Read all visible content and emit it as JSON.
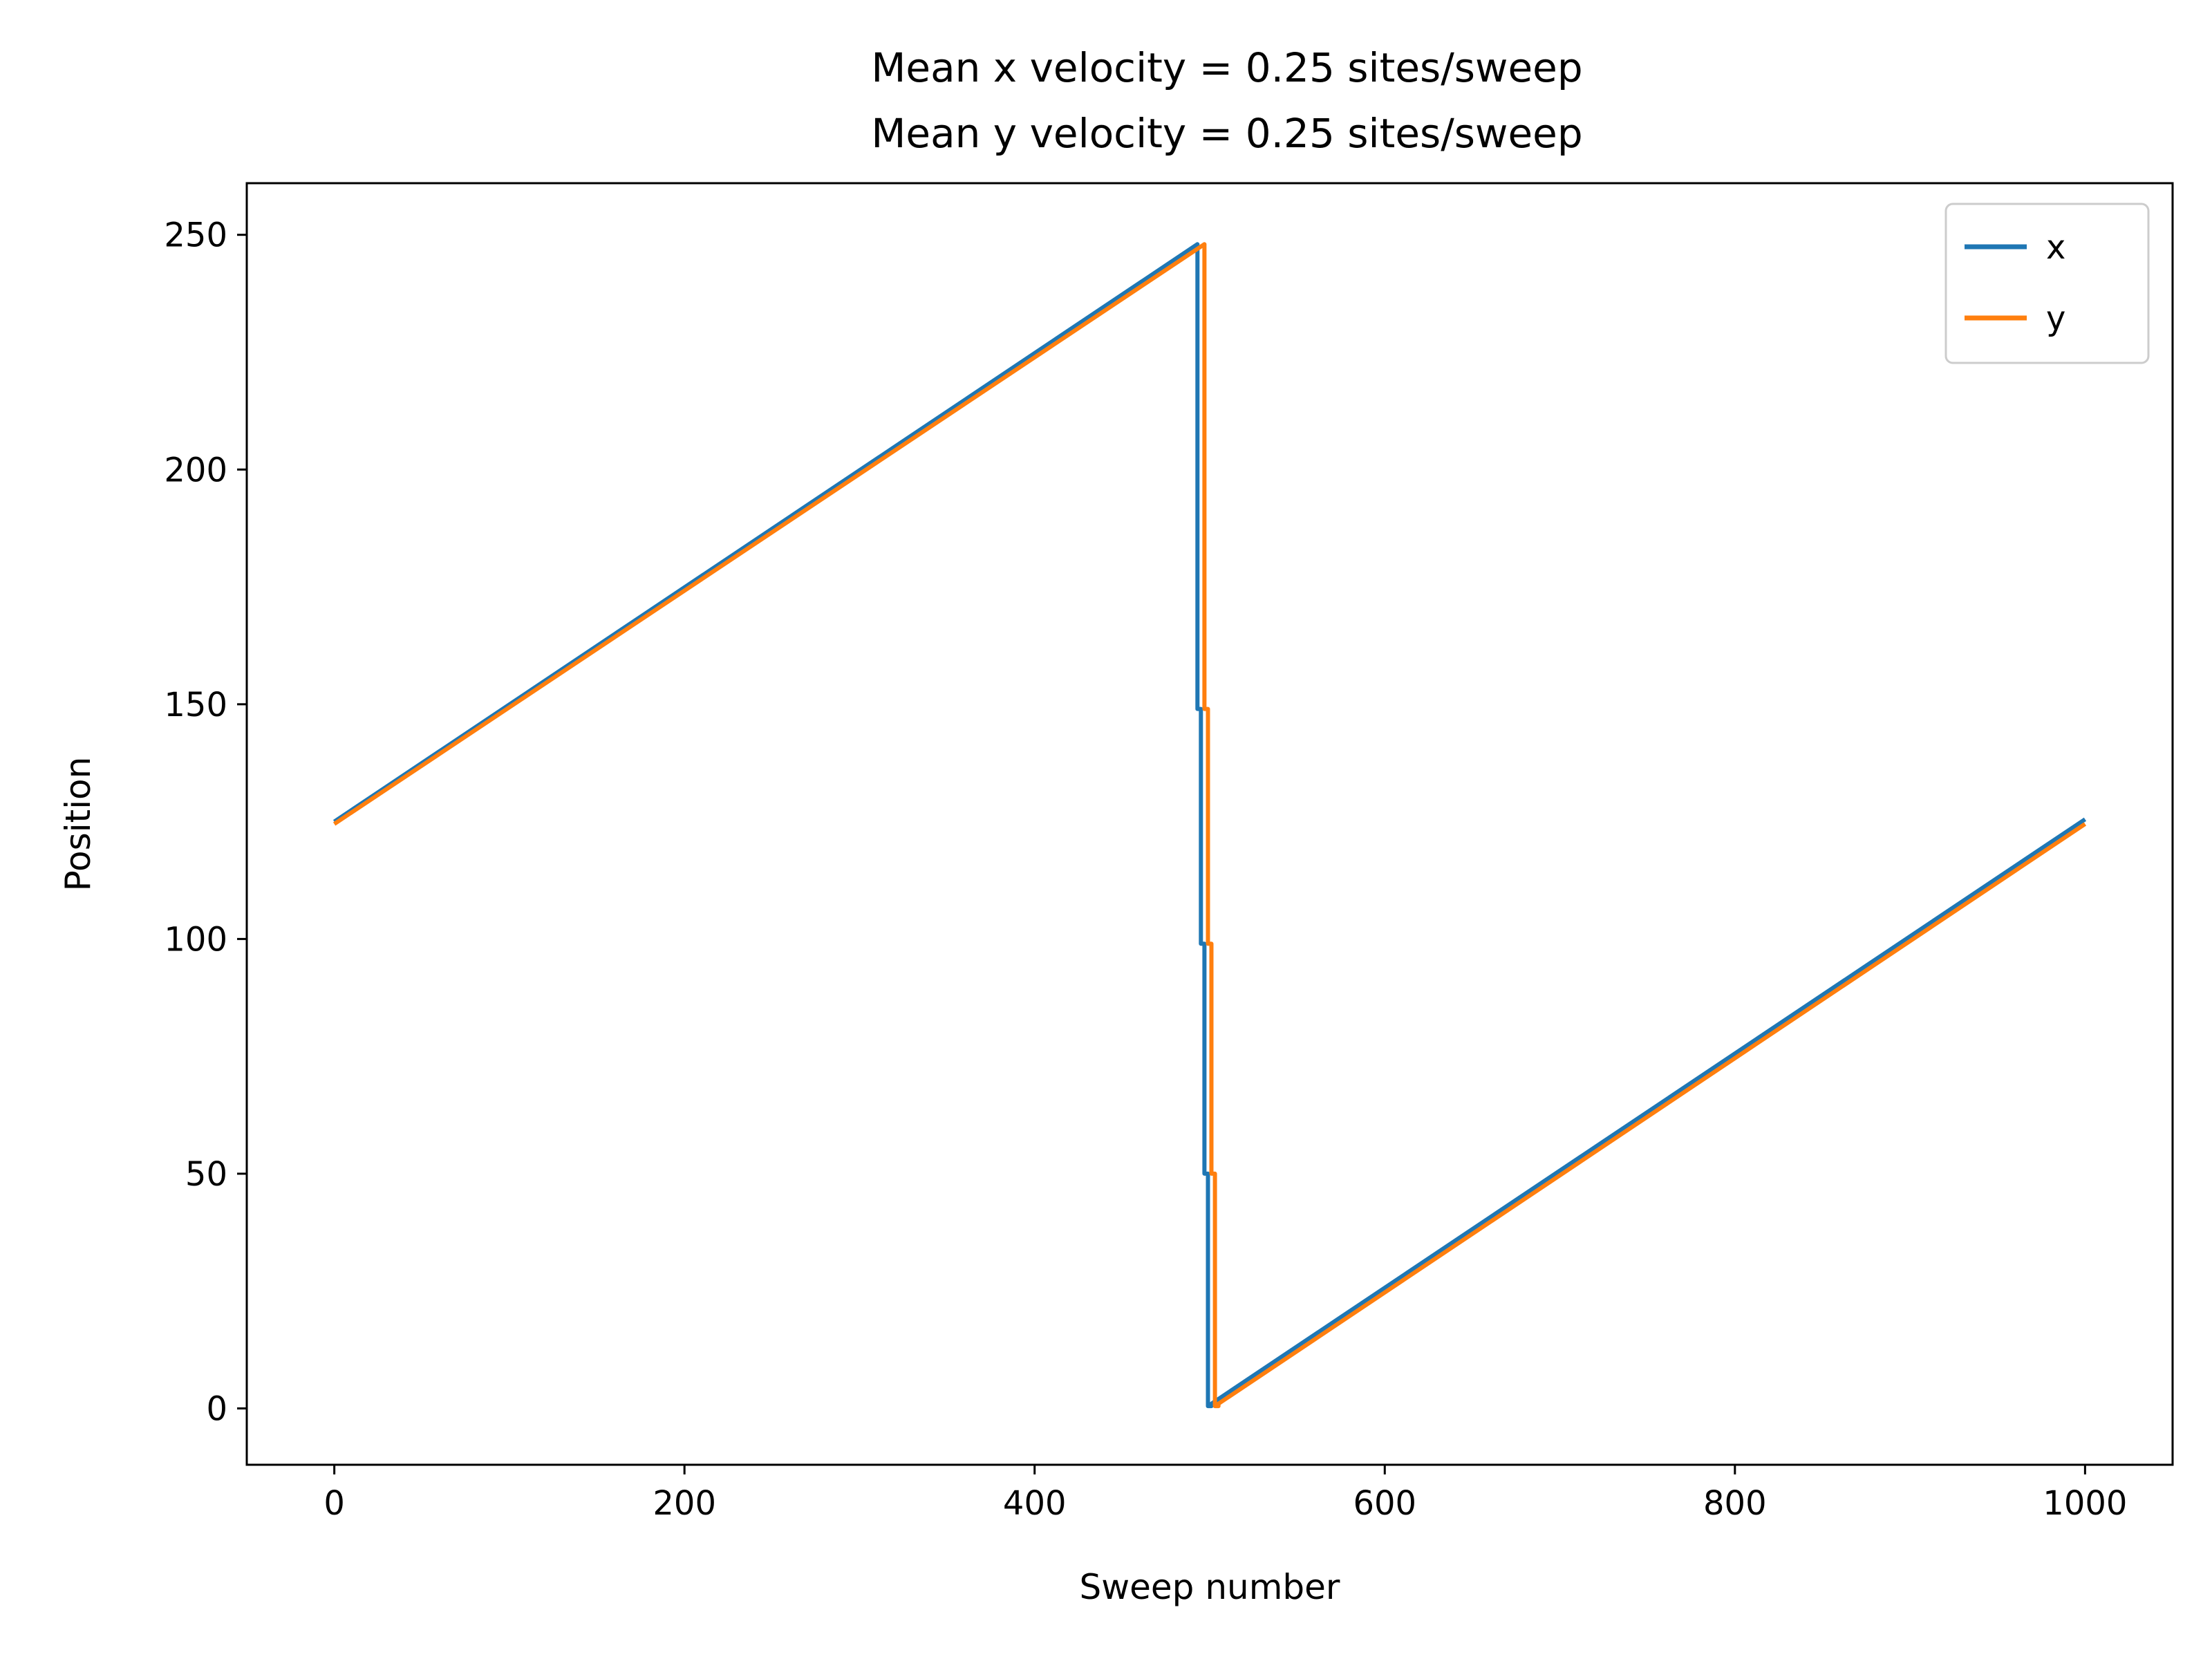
{
  "chart_data": {
    "type": "line",
    "title_lines": [
      "Mean x velocity = 0.25 sites/sweep",
      "Mean y velocity = 0.25 sites/sweep"
    ],
    "xlabel": "Sweep number",
    "ylabel": "Position",
    "xlim": [
      -50,
      1050
    ],
    "ylim": [
      -12,
      261
    ],
    "xticks": [
      0,
      200,
      400,
      600,
      800,
      1000
    ],
    "yticks": [
      0,
      50,
      100,
      150,
      200,
      250
    ],
    "grid": false,
    "legend_position": "top-right",
    "series": [
      {
        "name": "x",
        "color": "#1f77b4",
        "x": [
          0,
          493,
          493,
          495,
          495,
          497,
          497,
          499,
          499,
          501,
          501,
          1000
        ],
        "y": [
          125,
          248,
          149,
          149,
          99,
          99,
          50,
          50,
          0.5,
          0.5,
          1,
          125.5
        ]
      },
      {
        "name": "y",
        "color": "#ff7f0e",
        "x": [
          0,
          497,
          497,
          499,
          499,
          501,
          501,
          503,
          503,
          505,
          505,
          1000
        ],
        "y": [
          124.5,
          248,
          149,
          149,
          99,
          99,
          50,
          50,
          0.5,
          0.5,
          1,
          124.5
        ]
      }
    ]
  }
}
